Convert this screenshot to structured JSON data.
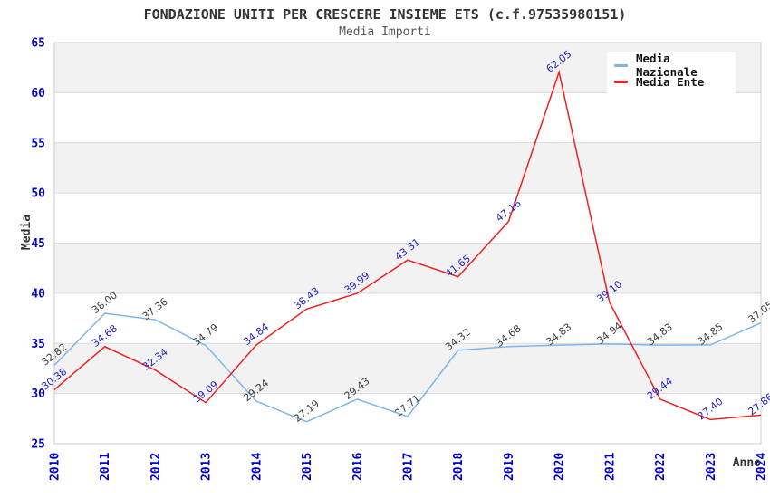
{
  "chart_data": {
    "type": "line",
    "title": "FONDAZIONE UNITI PER CRESCERE INSIEME ETS (c.f.97535980151)",
    "subtitle": "Media Importi",
    "xlabel": "Anno",
    "ylabel": "Media",
    "categories": [
      "2010",
      "2011",
      "2012",
      "2013",
      "2014",
      "2015",
      "2016",
      "2017",
      "2018",
      "2019",
      "2020",
      "2021",
      "2022",
      "2023",
      "2024"
    ],
    "ylim": [
      25,
      65
    ],
    "y_ticks": [
      25,
      30,
      35,
      40,
      45,
      50,
      55,
      60,
      65
    ],
    "grid": "horizontal-gridlines-with-alternating-bands",
    "legend_position": "top-right",
    "series": [
      {
        "name": "Media Nazionale",
        "color": "#7cb5ec",
        "label_color": "#3d3d3d",
        "values": [
          32.82,
          38.0,
          37.36,
          34.79,
          29.24,
          27.19,
          29.43,
          27.71,
          34.32,
          34.68,
          34.83,
          34.94,
          34.83,
          34.85,
          37.05
        ]
      },
      {
        "name": "Media Ente",
        "color": "#ee2020",
        "label_color": "#2222bb",
        "values": [
          30.38,
          34.68,
          32.34,
          29.09,
          34.84,
          38.43,
          39.99,
          43.31,
          41.65,
          47.16,
          62.05,
          39.1,
          29.44,
          27.4,
          27.86
        ]
      }
    ],
    "axis_tick_color": "#0000cc",
    "band_color": "#f2f2f2",
    "gridline_color": "#d9d9d9",
    "border_color": "#cccccc"
  }
}
